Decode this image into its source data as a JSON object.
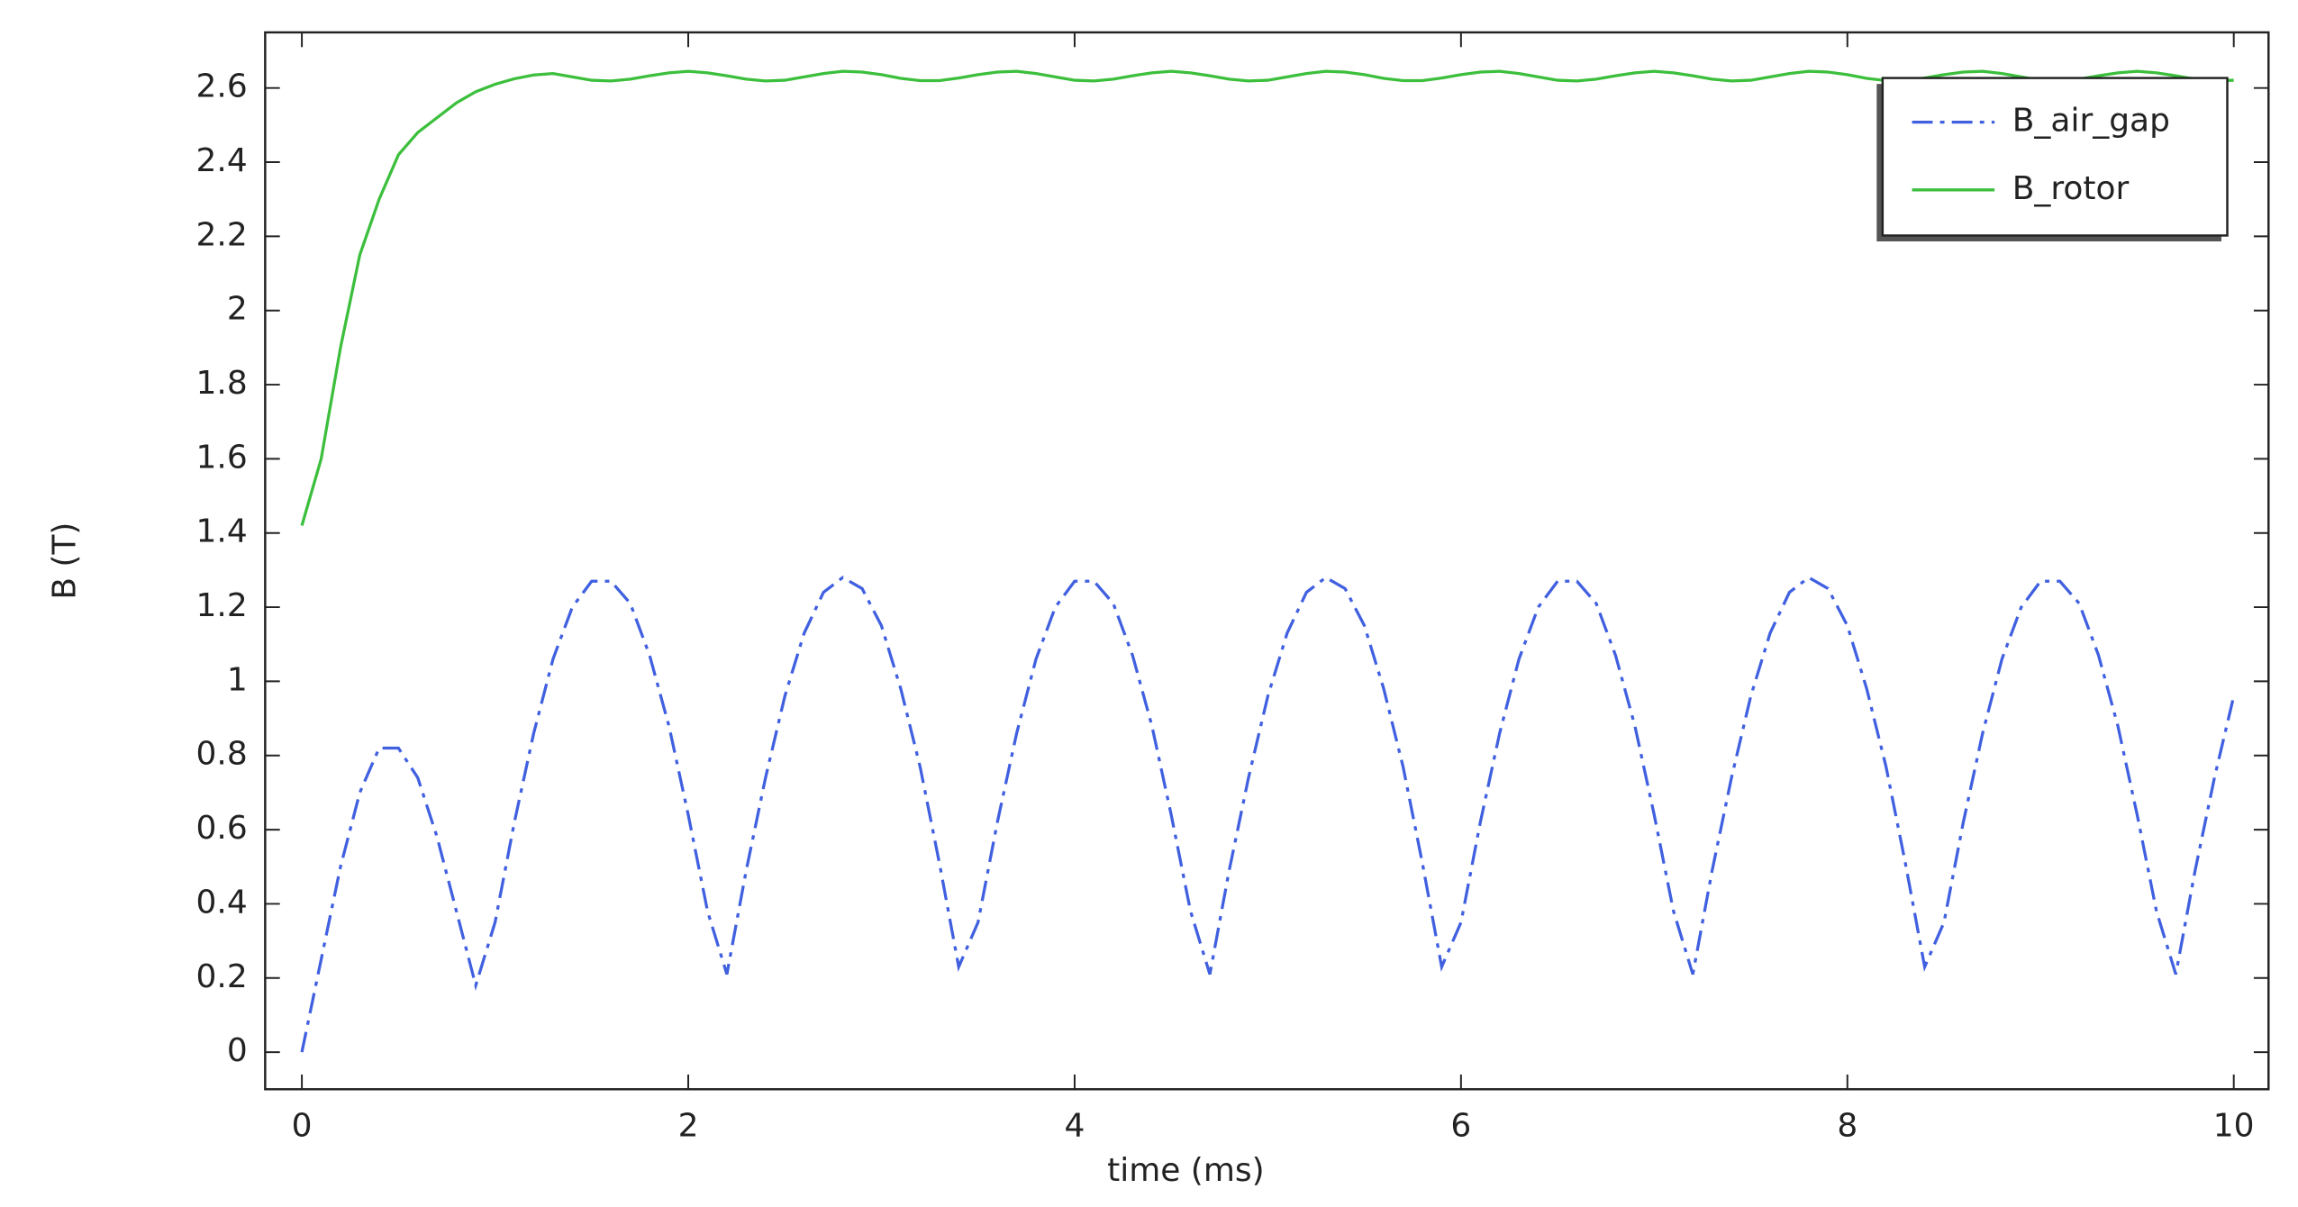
{
  "chart_data": {
    "type": "line",
    "x_label": "time (ms)",
    "y_label": "B (T)",
    "x": [
      0,
      0.1,
      0.2,
      0.3,
      0.4,
      0.5,
      0.6,
      0.7,
      0.8,
      0.9,
      1,
      1.1,
      1.2,
      1.3,
      1.4,
      1.5,
      1.6,
      1.7,
      1.8,
      1.9,
      2,
      2.1,
      2.2,
      2.3,
      2.4,
      2.5,
      2.6,
      2.7,
      2.8,
      2.9,
      3,
      3.1,
      3.2,
      3.3,
      3.4,
      3.5,
      3.6,
      3.7,
      3.8,
      3.9,
      4,
      4.1,
      4.2,
      4.3,
      4.4,
      4.5,
      4.6,
      4.7,
      4.8,
      4.9,
      5,
      5.1,
      5.2,
      5.3,
      5.4,
      5.5,
      5.6,
      5.7,
      5.8,
      5.9,
      6,
      6.1,
      6.2,
      6.3,
      6.4,
      6.5,
      6.6,
      6.7,
      6.8,
      6.9,
      7,
      7.1,
      7.2,
      7.3,
      7.4,
      7.5,
      7.6,
      7.7,
      7.8,
      7.9,
      8,
      8.1,
      8.2,
      8.3,
      8.4,
      8.5,
      8.6,
      8.7,
      8.8,
      8.9,
      9,
      9.1,
      9.2,
      9.3,
      9.4,
      9.5,
      9.6,
      9.7,
      9.8,
      9.9,
      10
    ],
    "series": [
      {
        "name": "B_air_gap",
        "color": "#4060e0",
        "dash": "dashdot",
        "values": [
          0,
          0.25,
          0.5,
          0.7,
          0.82,
          0.82,
          0.74,
          0.58,
          0.38,
          0.18,
          0.35,
          0.62,
          0.86,
          1.06,
          1.2,
          1.27,
          1.27,
          1.21,
          1.07,
          0.88,
          0.64,
          0.38,
          0.21,
          0.49,
          0.74,
          0.96,
          1.13,
          1.24,
          1.28,
          1.25,
          1.15,
          0.98,
          0.77,
          0.51,
          0.23,
          0.35,
          0.62,
          0.86,
          1.06,
          1.2,
          1.27,
          1.27,
          1.21,
          1.07,
          0.88,
          0.64,
          0.38,
          0.21,
          0.49,
          0.74,
          0.96,
          1.13,
          1.24,
          1.28,
          1.25,
          1.15,
          0.98,
          0.77,
          0.51,
          0.23,
          0.35,
          0.62,
          0.86,
          1.06,
          1.2,
          1.27,
          1.27,
          1.21,
          1.07,
          0.88,
          0.64,
          0.38,
          0.21,
          0.49,
          0.74,
          0.96,
          1.13,
          1.24,
          1.28,
          1.25,
          1.15,
          0.98,
          0.77,
          0.51,
          0.23,
          0.35,
          0.62,
          0.86,
          1.06,
          1.2,
          1.27,
          1.27,
          1.21,
          1.07,
          0.88,
          0.64,
          0.38,
          0.21,
          0.49,
          0.74,
          0.96
        ]
      },
      {
        "name": "B_rotor",
        "color": "#3cbf3c",
        "dash": "solid",
        "values": [
          1.42,
          1.6,
          1.9,
          2.15,
          2.3,
          2.42,
          2.48,
          2.52,
          2.56,
          2.59,
          2.61,
          2.625,
          2.635,
          2.639,
          2.63,
          2.621,
          2.619,
          2.624,
          2.633,
          2.641,
          2.645,
          2.641,
          2.633,
          2.624,
          2.619,
          2.621,
          2.63,
          2.639,
          2.645,
          2.643,
          2.636,
          2.626,
          2.62,
          2.62,
          2.627,
          2.636,
          2.643,
          2.645,
          2.639,
          2.63,
          2.621,
          2.619,
          2.624,
          2.633,
          2.641,
          2.645,
          2.641,
          2.633,
          2.624,
          2.619,
          2.621,
          2.63,
          2.639,
          2.645,
          2.643,
          2.636,
          2.626,
          2.62,
          2.62,
          2.627,
          2.636,
          2.643,
          2.645,
          2.639,
          2.63,
          2.621,
          2.619,
          2.624,
          2.633,
          2.641,
          2.645,
          2.641,
          2.633,
          2.624,
          2.619,
          2.621,
          2.63,
          2.639,
          2.645,
          2.643,
          2.636,
          2.626,
          2.62,
          2.62,
          2.627,
          2.636,
          2.643,
          2.645,
          2.639,
          2.63,
          2.621,
          2.619,
          2.624,
          2.633,
          2.641,
          2.645,
          2.641,
          2.633,
          2.624,
          2.619,
          2.621
        ]
      }
    ],
    "xlim": [
      -0.19,
      10.18
    ],
    "ylim": [
      -0.1,
      2.75
    ],
    "xticks": [
      0,
      2,
      4,
      6,
      8,
      10
    ],
    "yticks": [
      0,
      0.2,
      0.4,
      0.6,
      0.8,
      1,
      1.2,
      1.4,
      1.6,
      1.8,
      2,
      2.2,
      2.4,
      2.6
    ],
    "legend": "upper right"
  }
}
